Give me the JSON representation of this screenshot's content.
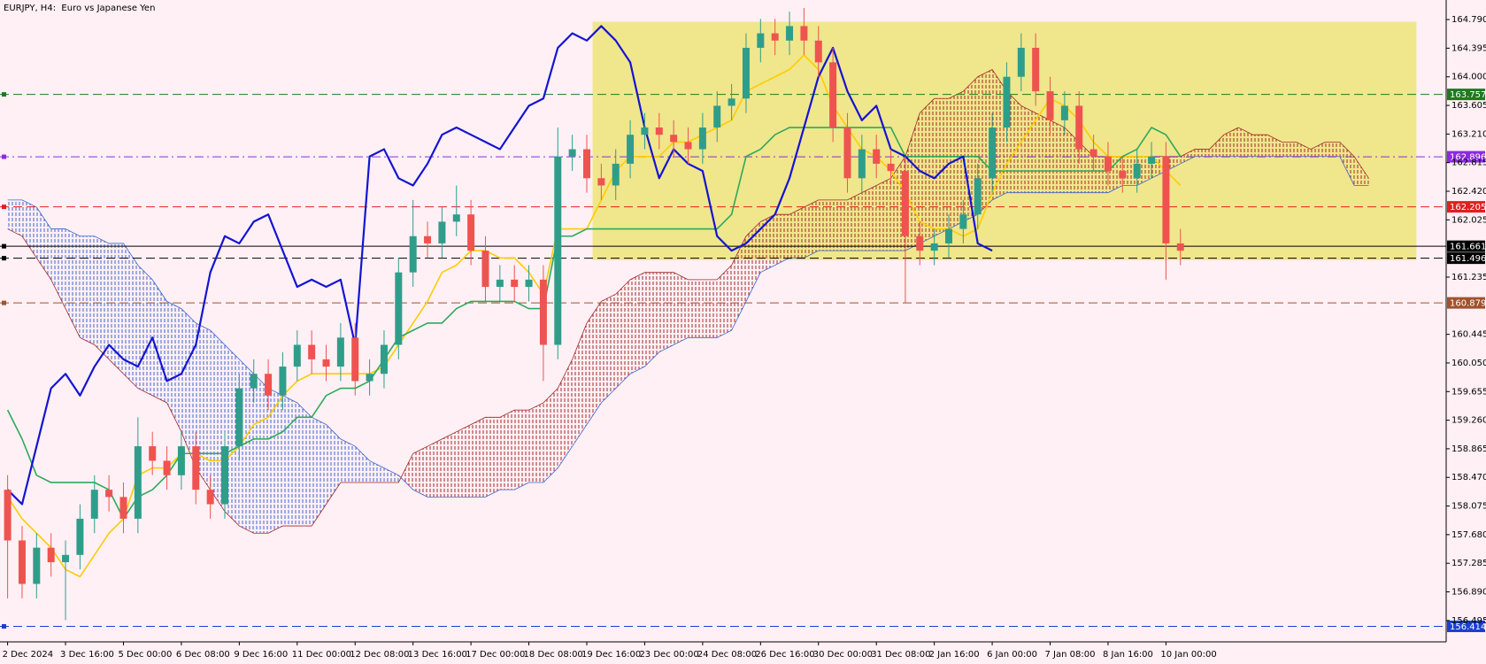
{
  "chart_data": {
    "type": "candlestick",
    "title": "EURJPY, H4:  Euro vs Japanese Yen",
    "categories": [
      "2 Dec 2024",
      null,
      null,
      null,
      "3 Dec 16:00",
      null,
      null,
      null,
      "5 Dec 00:00",
      null,
      null,
      null,
      "6 Dec 08:00",
      null,
      null,
      null,
      "9 Dec 16:00",
      null,
      null,
      null,
      "11 Dec 00:00",
      null,
      null,
      null,
      "12 Dec 08:00",
      null,
      null,
      null,
      "13 Dec 16:00",
      null,
      null,
      null,
      "17 Dec 00:00",
      null,
      null,
      null,
      "18 Dec 08:00",
      null,
      null,
      null,
      "19 Dec 16:00",
      null,
      null,
      null,
      "23 Dec 00:00",
      null,
      null,
      null,
      "24 Dec 08:00",
      null,
      null,
      null,
      "26 Dec 16:00",
      null,
      null,
      null,
      "30 Dec 00:00",
      null,
      null,
      null,
      "31 Dec 08:00",
      null,
      null,
      null,
      "2 Jan 16:00",
      null,
      null,
      null,
      "6 Jan 00:00",
      null,
      null,
      null,
      "7 Jan 08:00",
      null,
      null,
      null,
      "8 Jan 16:00",
      null,
      null,
      null,
      "10 Jan 00:00",
      null,
      null,
      null,
      null,
      null,
      null,
      null,
      null,
      null,
      null,
      null,
      null,
      null,
      null
    ],
    "candles": {
      "up_color": "#2e9e8a",
      "down_color": "#ef5350",
      "open": [
        158.3,
        157.6,
        157.0,
        157.5,
        157.3,
        157.4,
        157.9,
        158.3,
        158.2,
        157.9,
        158.9,
        158.7,
        158.5,
        158.9,
        158.3,
        158.1,
        158.9,
        159.7,
        159.9,
        159.6,
        160.0,
        160.3,
        160.1,
        160.0,
        160.4,
        159.8,
        159.9,
        160.3,
        161.3,
        161.8,
        161.7,
        162.0,
        162.1,
        161.6,
        161.1,
        161.2,
        161.1,
        161.2,
        160.3,
        162.9,
        163.0,
        162.6,
        162.5,
        162.8,
        163.2,
        163.3,
        163.2,
        163.1,
        163.0,
        163.3,
        163.6,
        163.7,
        164.4,
        164.6,
        164.5,
        164.7,
        164.5,
        164.2,
        163.3,
        162.6,
        163.0,
        162.8,
        162.7,
        161.8,
        161.6,
        161.7,
        161.9,
        162.1,
        162.6,
        163.3,
        164.0,
        164.4,
        163.8,
        163.4,
        163.6,
        163.0,
        162.9,
        162.7,
        162.6,
        162.8,
        162.9,
        161.7,
        null,
        null,
        null,
        null,
        null,
        null,
        null,
        null,
        null,
        null,
        null,
        null,
        null
      ],
      "high": [
        158.5,
        157.8,
        157.7,
        157.7,
        157.6,
        158.1,
        158.5,
        158.5,
        158.4,
        159.3,
        159.1,
        158.9,
        159.1,
        159.1,
        158.5,
        159.1,
        159.9,
        160.1,
        160.1,
        160.2,
        160.5,
        160.5,
        160.3,
        160.6,
        160.6,
        160.1,
        160.5,
        161.5,
        162.3,
        162.0,
        162.2,
        162.5,
        162.3,
        161.8,
        161.4,
        161.4,
        161.4,
        161.4,
        163.3,
        163.2,
        163.2,
        162.8,
        163.0,
        163.4,
        163.5,
        163.5,
        163.4,
        163.3,
        163.5,
        163.8,
        163.9,
        164.6,
        164.8,
        164.8,
        164.9,
        164.95,
        164.7,
        164.4,
        163.5,
        163.2,
        163.2,
        163.0,
        162.9,
        162.0,
        161.9,
        162.1,
        162.3,
        162.8,
        163.5,
        164.2,
        164.6,
        164.6,
        164.0,
        163.8,
        163.8,
        163.2,
        163.1,
        162.9,
        163.0,
        163.1,
        163.1,
        161.9,
        null,
        null,
        null,
        null,
        null,
        null,
        null,
        null,
        null,
        null,
        null,
        null,
        null
      ],
      "low": [
        156.8,
        156.8,
        156.8,
        157.1,
        156.5,
        157.2,
        157.7,
        158.0,
        157.7,
        157.7,
        158.5,
        158.3,
        158.3,
        158.1,
        157.9,
        157.9,
        158.7,
        159.5,
        159.4,
        159.4,
        159.8,
        159.9,
        159.8,
        159.8,
        159.6,
        159.6,
        159.7,
        160.1,
        161.1,
        161.5,
        161.5,
        161.8,
        161.4,
        160.9,
        160.9,
        160.9,
        160.9,
        159.8,
        160.1,
        162.7,
        162.4,
        162.3,
        162.3,
        162.6,
        163.0,
        163.0,
        162.9,
        162.8,
        162.8,
        163.1,
        163.4,
        163.5,
        164.2,
        164.3,
        164.3,
        164.3,
        164.0,
        163.1,
        162.4,
        162.4,
        162.6,
        162.5,
        160.88,
        161.4,
        161.4,
        161.5,
        161.7,
        161.9,
        162.4,
        163.1,
        163.8,
        163.6,
        163.2,
        163.2,
        162.8,
        162.7,
        162.5,
        162.4,
        162.4,
        162.6,
        161.2,
        161.4,
        null,
        null,
        null,
        null,
        null,
        null,
        null,
        null,
        null,
        null,
        null,
        null,
        null
      ],
      "close": [
        157.6,
        157.0,
        157.5,
        157.3,
        157.4,
        157.9,
        158.3,
        158.2,
        157.9,
        158.9,
        158.7,
        158.5,
        158.9,
        158.3,
        158.1,
        158.9,
        159.7,
        159.9,
        159.6,
        160.0,
        160.3,
        160.1,
        160.0,
        160.4,
        159.8,
        159.9,
        160.3,
        161.3,
        161.8,
        161.7,
        162.0,
        162.1,
        161.6,
        161.1,
        161.2,
        161.1,
        161.2,
        160.3,
        162.9,
        163.0,
        162.6,
        162.5,
        162.8,
        163.2,
        163.3,
        163.2,
        163.1,
        163.0,
        163.3,
        163.6,
        163.7,
        164.4,
        164.6,
        164.5,
        164.7,
        164.5,
        164.2,
        163.3,
        162.6,
        163.0,
        162.8,
        162.7,
        161.8,
        161.6,
        161.7,
        161.9,
        162.1,
        162.6,
        163.3,
        164.0,
        164.4,
        163.8,
        163.4,
        163.6,
        163.0,
        162.9,
        162.7,
        162.6,
        162.8,
        162.9,
        161.7,
        161.6,
        null,
        null,
        null,
        null,
        null,
        null,
        null,
        null,
        null,
        null,
        null,
        null,
        null
      ]
    },
    "lines": [
      {
        "color": "#ffcc00",
        "width": 1.6,
        "values": [
          158.2,
          157.9,
          157.7,
          157.5,
          157.2,
          157.1,
          157.4,
          157.7,
          157.9,
          158.5,
          158.6,
          158.6,
          158.8,
          158.8,
          158.7,
          158.7,
          158.9,
          159.2,
          159.3,
          159.6,
          159.8,
          159.9,
          159.9,
          159.9,
          159.9,
          159.9,
          160.0,
          160.3,
          160.6,
          160.9,
          161.3,
          161.4,
          161.6,
          161.6,
          161.5,
          161.5,
          161.3,
          161.0,
          161.9,
          161.9,
          161.9,
          162.3,
          162.7,
          162.9,
          162.9,
          162.9,
          163.1,
          163.1,
          163.2,
          163.3,
          163.4,
          163.8,
          163.9,
          164.0,
          164.1,
          164.3,
          164.1,
          163.6,
          163.3,
          163.0,
          162.9,
          162.7,
          162.4,
          162.0,
          161.9,
          161.9,
          161.8,
          161.9,
          162.4,
          162.8,
          163.1,
          163.4,
          163.7,
          163.6,
          163.4,
          163.1,
          162.9,
          162.9,
          162.9,
          162.9,
          162.7,
          162.5,
          null,
          null,
          null,
          null,
          null,
          null,
          null,
          null,
          null,
          null,
          null,
          null,
          null
        ]
      },
      {
        "color": "#2daa5a",
        "width": 1.6,
        "values": [
          159.4,
          159.0,
          158.5,
          158.4,
          158.4,
          158.4,
          158.4,
          158.3,
          157.9,
          158.2,
          158.3,
          158.5,
          158.8,
          158.8,
          158.8,
          158.8,
          158.9,
          159.0,
          159.0,
          159.1,
          159.3,
          159.3,
          159.6,
          159.7,
          159.7,
          159.8,
          160.1,
          160.4,
          160.5,
          160.6,
          160.6,
          160.8,
          160.9,
          160.9,
          160.9,
          160.9,
          160.8,
          160.8,
          161.8,
          161.8,
          161.9,
          161.9,
          161.9,
          161.9,
          161.9,
          161.9,
          161.9,
          161.9,
          161.9,
          161.9,
          162.1,
          162.9,
          163.0,
          163.2,
          163.3,
          163.3,
          163.3,
          163.3,
          163.3,
          163.3,
          163.3,
          163.3,
          162.9,
          162.9,
          162.9,
          162.9,
          162.9,
          162.9,
          162.7,
          162.7,
          162.7,
          162.7,
          162.7,
          162.7,
          162.7,
          162.7,
          162.7,
          162.9,
          163.0,
          163.3,
          163.2,
          162.9,
          null,
          null,
          null,
          null,
          null,
          null,
          null,
          null,
          null,
          null,
          null,
          null,
          null
        ]
      },
      {
        "color": "#1414d2",
        "width": 2.2,
        "values": [
          158.3,
          158.1,
          158.9,
          159.7,
          159.9,
          159.6,
          160.0,
          160.3,
          160.1,
          160.0,
          160.4,
          159.8,
          159.9,
          160.3,
          161.3,
          161.8,
          161.7,
          162.0,
          162.1,
          161.6,
          161.1,
          161.2,
          161.1,
          161.2,
          160.3,
          162.9,
          163.0,
          162.6,
          162.5,
          162.8,
          163.2,
          163.3,
          163.2,
          163.1,
          163.0,
          163.3,
          163.6,
          163.7,
          164.4,
          164.6,
          164.5,
          164.7,
          164.5,
          164.2,
          163.3,
          162.6,
          163.0,
          162.8,
          162.7,
          161.8,
          161.6,
          161.7,
          161.9,
          162.1,
          162.6,
          163.3,
          164.0,
          164.4,
          163.8,
          163.4,
          163.6,
          163.0,
          162.9,
          162.7,
          162.6,
          162.8,
          162.9,
          161.7,
          161.6,
          null,
          null,
          null,
          null,
          null,
          null,
          null,
          null,
          null,
          null,
          null,
          null,
          null,
          null,
          null,
          null,
          null,
          null,
          null,
          null,
          null,
          null,
          null,
          null,
          null,
          null
        ]
      }
    ],
    "cloud": {
      "up_color": "#3c64d2",
      "down_color": "#a02828",
      "span_a": [
        162.3,
        162.3,
        162.2,
        161.9,
        161.9,
        161.8,
        161.8,
        161.7,
        161.7,
        161.4,
        161.2,
        160.9,
        160.8,
        160.6,
        160.5,
        160.3,
        160.1,
        159.9,
        159.7,
        159.6,
        159.5,
        159.3,
        159.2,
        159.0,
        158.9,
        158.7,
        158.6,
        158.5,
        158.3,
        158.2,
        158.2,
        158.2,
        158.2,
        158.2,
        158.3,
        158.3,
        158.4,
        158.4,
        158.6,
        158.9,
        159.2,
        159.5,
        159.7,
        159.9,
        160.0,
        160.2,
        160.3,
        160.4,
        160.4,
        160.4,
        160.5,
        160.9,
        161.3,
        161.4,
        161.5,
        161.5,
        161.6,
        161.6,
        161.6,
        161.6,
        161.6,
        161.6,
        161.6,
        161.7,
        161.8,
        161.9,
        162.0,
        162.1,
        162.3,
        162.4,
        162.4,
        162.4,
        162.4,
        162.4,
        162.4,
        162.4,
        162.4,
        162.5,
        162.5,
        162.6,
        162.7,
        162.8,
        162.9,
        162.9,
        162.9,
        162.9,
        162.9,
        162.9,
        162.9,
        162.9,
        162.9,
        162.9,
        162.9,
        162.5,
        162.5
      ],
      "span_b": [
        161.9,
        161.8,
        161.5,
        161.2,
        160.8,
        160.4,
        160.3,
        160.1,
        159.9,
        159.7,
        159.6,
        159.5,
        159.1,
        158.6,
        158.3,
        158.0,
        157.8,
        157.7,
        157.7,
        157.8,
        157.8,
        157.8,
        158.1,
        158.4,
        158.4,
        158.4,
        158.4,
        158.4,
        158.8,
        158.9,
        159.0,
        159.1,
        159.2,
        159.3,
        159.3,
        159.4,
        159.4,
        159.5,
        159.7,
        160.1,
        160.6,
        160.9,
        161.0,
        161.2,
        161.3,
        161.3,
        161.3,
        161.2,
        161.2,
        161.2,
        161.4,
        161.8,
        162.0,
        162.1,
        162.1,
        162.2,
        162.3,
        162.3,
        162.3,
        162.4,
        162.5,
        162.6,
        162.9,
        163.5,
        163.7,
        163.7,
        163.8,
        164.0,
        164.1,
        163.8,
        163.6,
        163.5,
        163.4,
        163.3,
        163.1,
        162.9,
        162.9,
        162.9,
        162.9,
        162.9,
        162.9,
        162.9,
        163.0,
        163.0,
        163.2,
        163.3,
        163.2,
        163.2,
        163.1,
        163.1,
        163.0,
        163.1,
        163.1,
        162.9,
        162.6
      ]
    },
    "highlight": {
      "color": "#f0e68c",
      "x": [
        40.4,
        97.3
      ],
      "y": [
        161.47,
        164.76
      ]
    },
    "levels": [
      {
        "value": 163.757,
        "color": "#1e7a1e",
        "style": "dash"
      },
      {
        "value": 162.896,
        "color": "#8a2be2",
        "style": "dashdot"
      },
      {
        "value": 162.205,
        "color": "#e02020",
        "style": "dash"
      },
      {
        "value": 161.661,
        "color": "#000000",
        "style": "solid"
      },
      {
        "value": 161.496,
        "color": "#000000",
        "style": "dash"
      },
      {
        "value": 160.879,
        "color": "#a0522d",
        "style": "dash"
      },
      {
        "value": 156.414,
        "color": "#1a3fd0",
        "style": "dash"
      }
    ],
    "ylim": [
      156.2,
      165.06
    ],
    "yticks": [
      {
        "value": 164.79,
        "label": "164.790"
      },
      164.395,
      {
        "value": 164,
        "label": "164.000"
      },
      163.605,
      {
        "value": 163.21,
        "label": "163.210"
      },
      162.815,
      {
        "value": 162.42,
        "label": "162.420"
      },
      162.025,
      161.235,
      160.445,
      {
        "value": 160.05,
        "label": "160.050"
      },
      159.655,
      {
        "value": 159.26,
        "label": "159.260"
      },
      158.865,
      {
        "value": 158.47,
        "label": "158.470"
      },
      158.075,
      {
        "value": 157.68,
        "label": "157.680"
      },
      157.285,
      {
        "value": 156.89,
        "label": "156.890"
      },
      156.495
    ]
  }
}
